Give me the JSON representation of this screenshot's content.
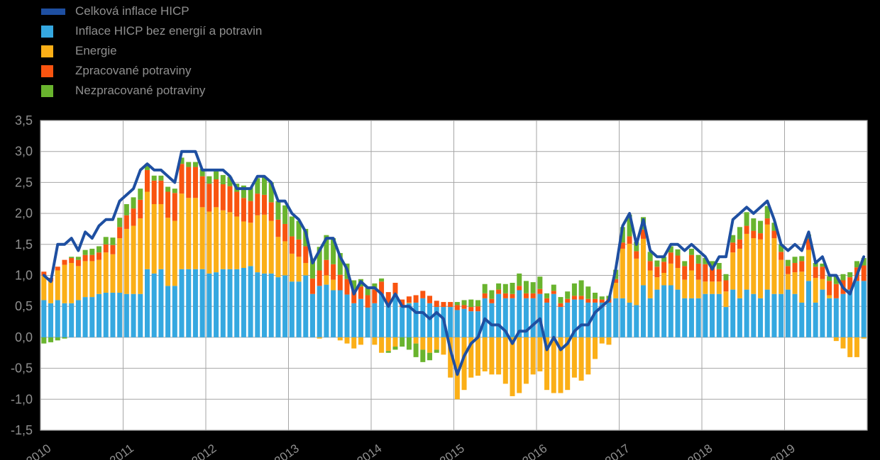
{
  "page_bg": "#000000",
  "legend": {
    "items": [
      {
        "label": "Celková inflace HICP",
        "color": "#1E4FA1",
        "marker": "line"
      },
      {
        "label": "Inflace HICP bez energií a potravin",
        "color": "#35A8E0",
        "marker": "box"
      },
      {
        "label": "Energie",
        "color": "#FBAF17",
        "marker": "box"
      },
      {
        "label": "Zpracované potraviny",
        "color": "#F95410",
        "marker": "box"
      },
      {
        "label": "Nezpracované potraviny",
        "color": "#69B42E",
        "marker": "box"
      }
    ]
  },
  "chart_data": {
    "type": "bar",
    "subtype": "stacked-bars-with-line",
    "title": "",
    "xlabel": "",
    "ylabel": "",
    "x_monthly_range": [
      "2010-01",
      "2019-12"
    ],
    "x_year_labels": [
      "2010",
      "2011",
      "2012",
      "2013",
      "2014",
      "2015",
      "2016",
      "2017",
      "2018",
      "2019"
    ],
    "ylim": [
      -1.5,
      3.5
    ],
    "y_tick_step": 0.5,
    "y_tick_labels": [
      "3,5",
      "3,0",
      "2,5",
      "2,0",
      "1,5",
      "1,0",
      "0,5",
      "0,0",
      "-0,5",
      "-1,0",
      "-1,5"
    ],
    "grid": true,
    "legend_position": "top-left",
    "plot_bg": "#FFFFFF",
    "gridline_color": "#A6A6A6",
    "text_color": "#8F8F8F",
    "series": [
      {
        "id": "core",
        "name": "Inflace HICP bez energií a potravin",
        "color": "#35A8E0",
        "values": [
          0.6,
          0.55,
          0.6,
          0.55,
          0.55,
          0.6,
          0.65,
          0.65,
          0.7,
          0.72,
          0.72,
          0.72,
          0.7,
          0.7,
          0.7,
          1.1,
          1.03,
          1.1,
          0.83,
          0.83,
          1.1,
          1.1,
          1.1,
          1.1,
          1.03,
          1.05,
          1.1,
          1.1,
          1.1,
          1.12,
          1.15,
          1.05,
          1.03,
          1.03,
          0.97,
          1.0,
          0.9,
          0.9,
          1.0,
          0.7,
          0.83,
          0.85,
          0.76,
          0.76,
          0.69,
          0.55,
          0.62,
          0.48,
          0.55,
          0.7,
          0.55,
          0.7,
          0.49,
          0.55,
          0.56,
          0.63,
          0.55,
          0.49,
          0.49,
          0.49,
          0.44,
          0.46,
          0.42,
          0.42,
          0.63,
          0.55,
          0.7,
          0.63,
          0.63,
          0.76,
          0.63,
          0.63,
          0.7,
          0.56,
          0.7,
          0.49,
          0.56,
          0.61,
          0.61,
          0.56,
          0.56,
          0.56,
          0.56,
          0.63,
          0.63,
          0.56,
          0.52,
          0.84,
          0.63,
          0.77,
          0.84,
          0.84,
          0.77,
          0.63,
          0.63,
          0.63,
          0.7,
          0.7,
          0.7,
          0.49,
          0.77,
          0.63,
          0.77,
          0.7,
          0.63,
          0.77,
          0.7,
          0.7,
          0.77,
          0.7,
          0.56,
          0.91,
          0.56,
          0.77,
          0.63,
          0.63,
          0.7,
          0.77,
          0.91,
          0.91
        ]
      },
      {
        "id": "energy",
        "name": "Energie",
        "color": "#FBAF17",
        "values": [
          0.4,
          0.35,
          0.48,
          0.62,
          0.65,
          0.55,
          0.58,
          0.58,
          0.55,
          0.65,
          0.62,
          0.88,
          1.05,
          1.1,
          1.22,
          1.25,
          1.12,
          1.05,
          1.1,
          1.05,
          1.22,
          1.15,
          1.15,
          1.0,
          1.0,
          1.05,
          0.95,
          0.92,
          0.85,
          0.75,
          0.7,
          0.92,
          0.95,
          0.85,
          0.65,
          0.55,
          0.45,
          0.4,
          0.2,
          0.0,
          -0.02,
          0.15,
          0.17,
          -0.05,
          -0.1,
          -0.18,
          -0.12,
          0.0,
          -0.12,
          -0.25,
          -0.22,
          -0.15,
          0.0,
          0.01,
          -0.1,
          -0.2,
          -0.25,
          -0.2,
          -0.28,
          -0.65,
          -1.0,
          -0.85,
          -0.65,
          -0.62,
          -0.55,
          -0.6,
          -0.6,
          -0.75,
          -0.95,
          -0.9,
          -0.75,
          -0.6,
          -0.55,
          -0.85,
          -0.9,
          -0.9,
          -0.85,
          -0.65,
          -0.7,
          -0.6,
          -0.35,
          -0.1,
          -0.12,
          0.25,
          0.8,
          0.95,
          0.75,
          0.75,
          0.45,
          0.2,
          0.2,
          0.35,
          0.35,
          0.3,
          0.45,
          0.3,
          0.2,
          0.2,
          0.2,
          0.25,
          0.6,
          0.8,
          0.9,
          0.9,
          0.95,
          1.05,
          0.9,
          0.55,
          0.25,
          0.35,
          0.5,
          0.5,
          0.4,
          0.17,
          0.05,
          -0.06,
          -0.18,
          -0.32,
          -0.32,
          -0.02
        ]
      },
      {
        "id": "processed-food",
        "name": "Zpracované potraviny",
        "color": "#F95410",
        "values": [
          0.06,
          0.06,
          0.06,
          0.08,
          0.08,
          0.1,
          0.1,
          0.1,
          0.12,
          0.13,
          0.15,
          0.18,
          0.22,
          0.28,
          0.3,
          0.35,
          0.38,
          0.38,
          0.42,
          0.45,
          0.48,
          0.5,
          0.5,
          0.5,
          0.45,
          0.45,
          0.42,
          0.42,
          0.4,
          0.38,
          0.35,
          0.35,
          0.32,
          0.3,
          0.28,
          0.28,
          0.28,
          0.28,
          0.27,
          0.25,
          0.25,
          0.25,
          0.25,
          0.25,
          0.25,
          0.22,
          0.2,
          0.2,
          0.22,
          0.2,
          0.18,
          0.18,
          0.12,
          0.1,
          0.12,
          0.12,
          0.12,
          0.1,
          0.08,
          0.08,
          0.08,
          0.06,
          0.07,
          0.08,
          0.08,
          0.07,
          0.07,
          0.08,
          0.07,
          0.07,
          0.08,
          0.08,
          0.08,
          0.07,
          0.05,
          0.06,
          0.06,
          0.06,
          0.06,
          0.06,
          0.06,
          0.05,
          0.06,
          0.06,
          0.1,
          0.12,
          0.12,
          0.15,
          0.15,
          0.17,
          0.18,
          0.18,
          0.2,
          0.22,
          0.25,
          0.26,
          0.28,
          0.25,
          0.2,
          0.18,
          0.16,
          0.15,
          0.13,
          0.12,
          0.1,
          0.1,
          0.12,
          0.13,
          0.13,
          0.15,
          0.17,
          0.18,
          0.18,
          0.2,
          0.23,
          0.23,
          0.22,
          0.2,
          0.22,
          0.25
        ]
      },
      {
        "id": "unprocessed-food",
        "name": "Nezpracované potraviny",
        "color": "#69B42E",
        "values": [
          -0.1,
          -0.08,
          -0.05,
          -0.02,
          0.02,
          0.05,
          0.08,
          0.1,
          0.1,
          0.12,
          0.12,
          0.15,
          0.18,
          0.18,
          0.18,
          0.1,
          0.08,
          0.08,
          0.08,
          0.07,
          0.1,
          0.08,
          0.08,
          0.12,
          0.12,
          0.13,
          0.15,
          0.15,
          0.13,
          0.2,
          0.22,
          0.25,
          0.28,
          0.32,
          0.3,
          0.3,
          0.32,
          0.3,
          0.28,
          0.32,
          0.38,
          0.4,
          0.42,
          0.35,
          0.25,
          0.15,
          0.12,
          0.12,
          0.1,
          0.05,
          -0.03,
          -0.05,
          -0.15,
          -0.2,
          -0.22,
          -0.2,
          -0.12,
          -0.05,
          0.0,
          0.0,
          0.05,
          0.08,
          0.12,
          0.1,
          0.15,
          0.14,
          0.1,
          0.15,
          0.18,
          0.2,
          0.2,
          0.18,
          0.2,
          0.08,
          0.1,
          0.1,
          0.12,
          0.2,
          0.25,
          0.2,
          0.1,
          0.05,
          0.05,
          0.15,
          0.25,
          0.35,
          0.15,
          0.2,
          0.15,
          0.1,
          0.08,
          0.1,
          0.1,
          0.08,
          0.1,
          0.14,
          0.1,
          0.08,
          0.1,
          0.1,
          0.12,
          0.2,
          0.22,
          0.2,
          0.2,
          0.2,
          0.13,
          0.12,
          0.1,
          0.1,
          0.08,
          0.07,
          0.06,
          0.05,
          0.08,
          0.12,
          0.1,
          0.08,
          0.1,
          0.12
        ]
      }
    ],
    "line_series": {
      "id": "total-hicp",
      "name": "Celková inflace HICP",
      "color": "#1E4FA1",
      "values": [
        1.0,
        0.9,
        1.5,
        1.5,
        1.6,
        1.4,
        1.7,
        1.6,
        1.8,
        1.9,
        1.9,
        2.2,
        2.3,
        2.4,
        2.7,
        2.8,
        2.7,
        2.7,
        2.6,
        2.5,
        3.0,
        3.0,
        3.0,
        2.7,
        2.7,
        2.7,
        2.7,
        2.6,
        2.4,
        2.4,
        2.4,
        2.6,
        2.6,
        2.5,
        2.2,
        2.2,
        2.0,
        1.9,
        1.7,
        1.2,
        1.4,
        1.6,
        1.6,
        1.3,
        1.1,
        0.7,
        0.9,
        0.8,
        0.8,
        0.7,
        0.5,
        0.7,
        0.5,
        0.5,
        0.4,
        0.4,
        0.3,
        0.4,
        0.3,
        -0.2,
        -0.6,
        -0.3,
        -0.1,
        0.0,
        0.3,
        0.2,
        0.2,
        0.1,
        -0.1,
        0.1,
        0.1,
        0.2,
        0.3,
        -0.2,
        0.0,
        -0.2,
        -0.1,
        0.1,
        0.2,
        0.2,
        0.4,
        0.5,
        0.6,
        1.1,
        1.8,
        2.0,
        1.5,
        1.9,
        1.4,
        1.3,
        1.3,
        1.5,
        1.5,
        1.4,
        1.5,
        1.4,
        1.3,
        1.1,
        1.3,
        1.3,
        1.9,
        2.0,
        2.1,
        2.0,
        2.1,
        2.2,
        1.9,
        1.5,
        1.4,
        1.5,
        1.4,
        1.7,
        1.2,
        1.3,
        1.0,
        1.0,
        0.8,
        0.7,
        1.0,
        1.3
      ]
    }
  }
}
